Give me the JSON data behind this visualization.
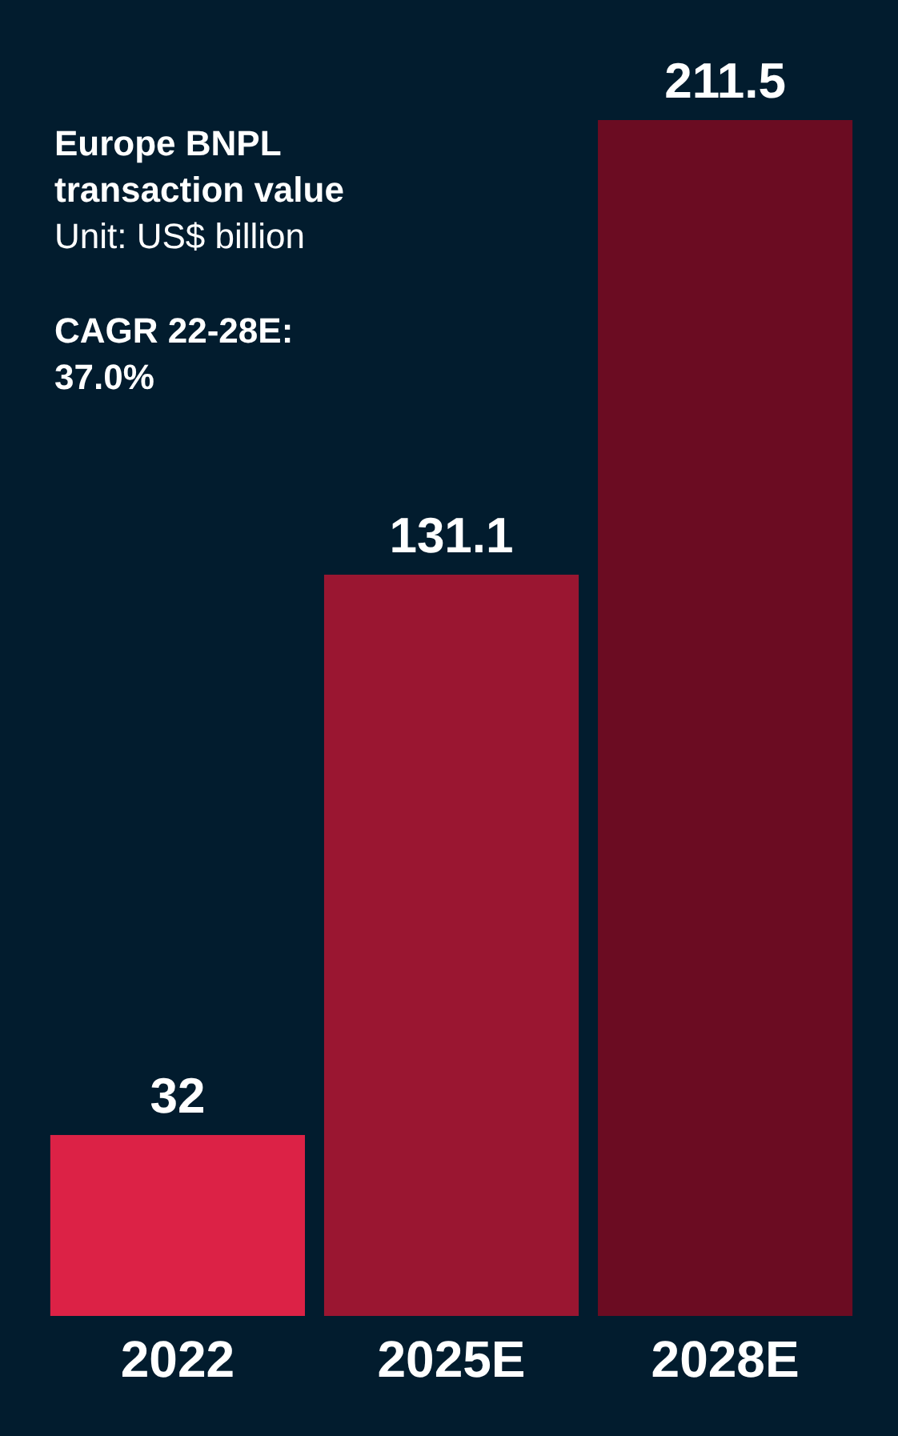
{
  "chart_data": {
    "type": "bar",
    "title": "Europe BNPL transaction value",
    "subtitle": "Unit: US$ billion",
    "annotations": [
      "CAGR 22-28E: 37.0%"
    ],
    "categories": [
      "2022",
      "2025E",
      "2028E"
    ],
    "values": [
      32,
      131.1,
      211.5
    ],
    "colors": [
      "#dc2246",
      "#9a1631",
      "#6b0c22"
    ],
    "data_labels": true
  }
}
